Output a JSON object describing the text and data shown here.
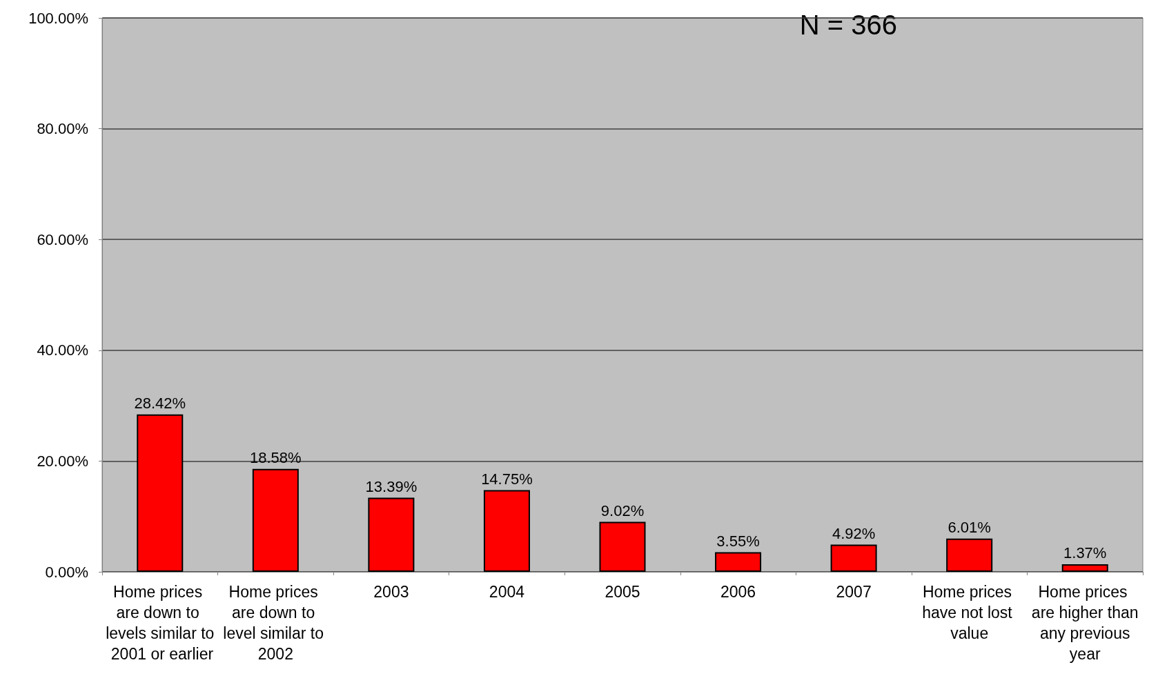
{
  "chart_data": {
    "type": "bar",
    "annotations": [
      "N = 366"
    ],
    "categories": [
      "Home prices are down to levels similar to 2001 or earlier",
      "Home prices are down to level similar to 2002",
      "2003",
      "2004",
      "2005",
      "2006",
      "2007",
      "Home prices have not lost value",
      "Home prices are higher than any previous year"
    ],
    "values": [
      28.42,
      18.58,
      13.39,
      14.75,
      9.02,
      3.55,
      4.92,
      6.01,
      1.37
    ],
    "value_labels": [
      "28.42%",
      "18.58%",
      "13.39%",
      "14.75%",
      "9.02%",
      "3.55%",
      "4.92%",
      "6.01%",
      "1.37%"
    ],
    "color": "#ff0000",
    "ylim": [
      0,
      100
    ],
    "yticks": [
      {
        "value": 0,
        "label": "0.00%"
      },
      {
        "value": 20,
        "label": "20.00%"
      },
      {
        "value": 40,
        "label": "40.00%"
      },
      {
        "value": 60,
        "label": "60.00%"
      },
      {
        "value": 80,
        "label": "80.00%"
      },
      {
        "value": 100,
        "label": "100.00%"
      }
    ],
    "grid": "y"
  }
}
